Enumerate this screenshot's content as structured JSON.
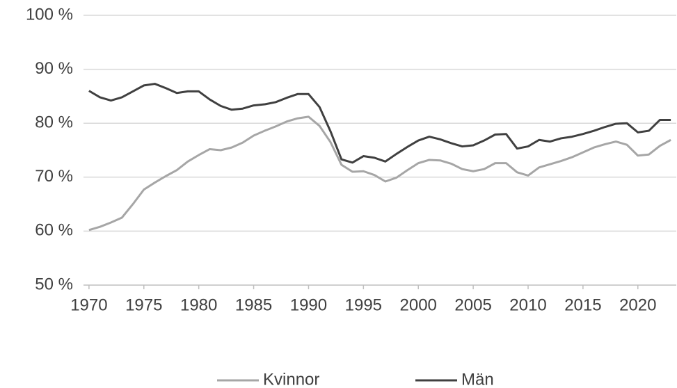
{
  "chart_data": {
    "type": "line",
    "x": [
      1970,
      1971,
      1972,
      1973,
      1974,
      1975,
      1976,
      1977,
      1978,
      1979,
      1980,
      1981,
      1982,
      1983,
      1984,
      1985,
      1986,
      1987,
      1988,
      1989,
      1990,
      1991,
      1992,
      1993,
      1994,
      1995,
      1996,
      1997,
      1998,
      1999,
      2000,
      2001,
      2002,
      2003,
      2004,
      2005,
      2006,
      2007,
      2008,
      2009,
      2010,
      2011,
      2012,
      2013,
      2014,
      2015,
      2016,
      2017,
      2018,
      2019,
      2020,
      2021,
      2022,
      2023
    ],
    "series": [
      {
        "name": "Kvinnor",
        "color": "#a6a6a6",
        "values": [
          60.2,
          60.8,
          61.6,
          62.5,
          65.0,
          67.7,
          69.0,
          70.2,
          71.3,
          72.9,
          74.1,
          75.2,
          75.0,
          75.5,
          76.4,
          77.7,
          78.6,
          79.4,
          80.3,
          80.9,
          81.2,
          79.5,
          76.5,
          72.3,
          71.0,
          71.1,
          70.4,
          69.2,
          69.9,
          71.3,
          72.6,
          73.2,
          73.1,
          72.5,
          71.5,
          71.1,
          71.5,
          72.6,
          72.6,
          70.9,
          70.3,
          71.8,
          72.4,
          73.0,
          73.7,
          74.6,
          75.5,
          76.1,
          76.6,
          76.0,
          74.0,
          74.2,
          75.8,
          76.9
        ]
      },
      {
        "name": "Män",
        "color": "#404040",
        "values": [
          86.0,
          84.8,
          84.2,
          84.8,
          85.9,
          87.0,
          87.3,
          86.5,
          85.6,
          85.9,
          85.9,
          84.4,
          83.2,
          82.5,
          82.7,
          83.3,
          83.5,
          83.9,
          84.7,
          85.4,
          85.4,
          83.0,
          78.5,
          73.3,
          72.7,
          73.9,
          73.6,
          72.9,
          74.3,
          75.6,
          76.8,
          77.5,
          77.0,
          76.3,
          75.7,
          75.9,
          76.8,
          77.9,
          78.0,
          75.3,
          75.7,
          76.9,
          76.6,
          77.2,
          77.5,
          78.0,
          78.6,
          79.3,
          79.9,
          80.0,
          78.3,
          78.6,
          80.6,
          80.6
        ]
      }
    ],
    "xlim": [
      1969.5,
      2023.5
    ],
    "xticks": [
      1970,
      1975,
      1980,
      1985,
      1990,
      1995,
      2000,
      2005,
      2010,
      2015,
      2020
    ],
    "ylim": [
      50,
      100
    ],
    "yticks": [
      {
        "value": 50,
        "label": "50 %"
      },
      {
        "value": 60,
        "label": "60 %"
      },
      {
        "value": 70,
        "label": "70 %"
      },
      {
        "value": 80,
        "label": "80 %"
      },
      {
        "value": 90,
        "label": "90 %"
      },
      {
        "value": 100,
        "label": "100 %"
      }
    ],
    "grid": true,
    "legend": "bottom"
  }
}
